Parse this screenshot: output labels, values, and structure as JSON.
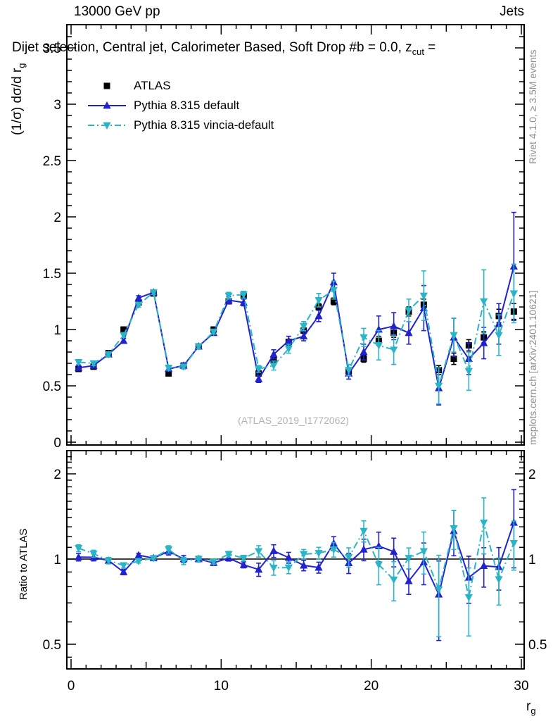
{
  "header": {
    "beam_label": "13000 GeV pp",
    "process_label": "Jets"
  },
  "selection_title": {
    "main": "Dijet selection, Central jet, Calorimeter Based, Soft Drop #b = 0.0, z",
    "sub": "cut",
    "tail": " ="
  },
  "axes": {
    "y_main_prefix": "(1/σ) dσ/d r",
    "y_main_sub": "g",
    "y_ratio_label": "Ratio to ATLAS",
    "x_prefix": "r",
    "x_sub": "g"
  },
  "legend": [
    {
      "label": "ATLAS",
      "marker": "square",
      "line": "none",
      "color": "#000000"
    },
    {
      "label": "Pythia 8.315 default",
      "marker": "triangle-up",
      "line": "solid",
      "color": "#2222cc"
    },
    {
      "label": "Pythia 8.315 vincia-default",
      "marker": "triangle-down",
      "line": "dashdot",
      "color": "#2ab4c8"
    }
  ],
  "side_notes": {
    "top": "Rivet 4.1.0, ≥ 3.5M events",
    "bottom": "mcplots.cern.ch [arXiv:2401.10621]"
  },
  "watermark": "(ATLAS_2019_I1772062)",
  "colors": {
    "atlas": "#000000",
    "pythia_default": "#2222cc",
    "pythia_vincia": "#2ab4c8",
    "side_note": "#8e8e8e",
    "watermark": "#b2b2b2",
    "frame": "#000000"
  },
  "chart_data": {
    "type": "line",
    "title": "Dijet selection, Central jet, Calorimeter Based, Soft Drop #b = 0.0, z_cut =",
    "xlabel": "r_g",
    "ylabel": "(1/σ) dσ/d r_g",
    "ylabel_ratio": "Ratio to ATLAS",
    "xlim": [
      -0.3,
      30.3
    ],
    "ylim_main": [
      0,
      3.72
    ],
    "ylim_ratio": [
      0.41,
      2.42
    ],
    "ratio_scale": "log",
    "grid": false,
    "legend_position": "top-left",
    "x_ticks": [
      0,
      10,
      20,
      30
    ],
    "y_ticks_main": [
      0,
      0.5,
      1,
      1.5,
      2,
      2.5,
      3,
      3.5
    ],
    "y_ticks_ratio": [
      0.5,
      1,
      2
    ],
    "x": [
      0.5,
      1.5,
      2.5,
      3.5,
      4.5,
      5.5,
      6.5,
      7.5,
      8.5,
      9.5,
      10.5,
      11.5,
      12.5,
      13.5,
      14.5,
      15.5,
      16.5,
      17.5,
      18.5,
      19.5,
      20.5,
      21.5,
      22.5,
      23.5,
      24.5,
      25.5,
      26.5,
      27.5,
      28.5,
      29.5
    ],
    "series": [
      {
        "name": "ATLAS",
        "marker": "square",
        "line": "none",
        "color": "#000000",
        "values": [
          0.65,
          0.67,
          0.79,
          1.0,
          1.24,
          1.32,
          0.61,
          0.68,
          0.85,
          1.0,
          1.25,
          1.3,
          0.61,
          0.73,
          0.89,
          0.99,
          1.2,
          1.25,
          0.63,
          0.74,
          0.9,
          0.97,
          1.16,
          1.22,
          0.64,
          0.74,
          0.86,
          0.93,
          1.12,
          1.16
        ],
        "errors": [
          0.01,
          0.01,
          0.01,
          0.01,
          0.01,
          0.01,
          0.01,
          0.01,
          0.01,
          0.01,
          0.02,
          0.02,
          0.02,
          0.02,
          0.02,
          0.02,
          0.03,
          0.03,
          0.03,
          0.03,
          0.04,
          0.04,
          0.04,
          0.05,
          0.04,
          0.05,
          0.05,
          0.05,
          0.06,
          0.07
        ]
      },
      {
        "name": "Pythia 8.315 default",
        "marker": "triangle-up",
        "line": "solid",
        "color": "#2222cc",
        "values": [
          0.66,
          0.68,
          0.78,
          0.9,
          1.28,
          1.33,
          0.65,
          0.68,
          0.85,
          0.97,
          1.26,
          1.24,
          0.56,
          0.78,
          0.9,
          0.94,
          1.12,
          1.42,
          0.61,
          0.8,
          1.0,
          1.03,
          0.97,
          1.19,
          0.48,
          0.93,
          0.74,
          0.88,
          1.05,
          1.56
        ],
        "errors": [
          0.02,
          0.02,
          0.02,
          0.02,
          0.02,
          0.02,
          0.02,
          0.02,
          0.02,
          0.02,
          0.03,
          0.03,
          0.03,
          0.04,
          0.04,
          0.04,
          0.05,
          0.08,
          0.05,
          0.07,
          0.12,
          0.12,
          0.1,
          0.2,
          0.15,
          0.17,
          0.14,
          0.14,
          0.18,
          0.48
        ]
      },
      {
        "name": "Pythia 8.315 vincia-default",
        "marker": "triangle-down",
        "line": "dashdot",
        "color": "#2ab4c8",
        "values": [
          0.71,
          0.7,
          0.78,
          0.95,
          1.22,
          1.33,
          0.66,
          0.67,
          0.85,
          0.98,
          1.3,
          1.31,
          0.65,
          0.68,
          0.83,
          1.03,
          1.26,
          1.35,
          0.64,
          0.93,
          0.86,
          0.82,
          1.17,
          1.3,
          0.5,
          0.95,
          0.63,
          1.25,
          0.95,
          1.32
        ],
        "errors": [
          0.02,
          0.02,
          0.02,
          0.02,
          0.02,
          0.02,
          0.02,
          0.02,
          0.02,
          0.02,
          0.03,
          0.03,
          0.03,
          0.04,
          0.04,
          0.04,
          0.06,
          0.08,
          0.05,
          0.08,
          0.13,
          0.13,
          0.1,
          0.22,
          0.16,
          0.15,
          0.17,
          0.28,
          0.18,
          0.26
        ]
      }
    ],
    "ratio_reference": "ATLAS"
  }
}
